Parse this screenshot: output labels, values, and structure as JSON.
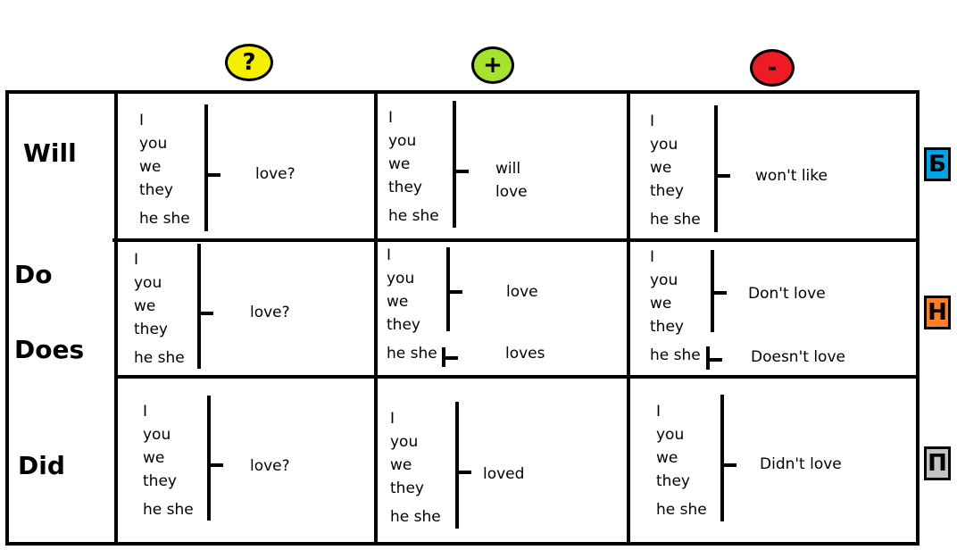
{
  "header": {
    "question": {
      "symbol": "?",
      "color": "#f5f000"
    },
    "positive": {
      "symbol": "+",
      "color": "#a6e22e"
    },
    "negative": {
      "symbol": "-",
      "color": "#ee1c24"
    }
  },
  "rows": {
    "will": "Will",
    "do": "Do",
    "does": "Does",
    "did": "Did"
  },
  "pronouns": {
    "i": "I",
    "you": "you",
    "we": "we",
    "they": "they",
    "heshe": "he she"
  },
  "cells": {
    "will_q": "love?",
    "will_pos_1": "will",
    "will_pos_2": "love",
    "will_neg": "won't like",
    "do_q": "love?",
    "do_pos": "love",
    "does_pos": "loves",
    "do_neg": "Don't love",
    "does_neg": "Doesn't love",
    "did_q": "love?",
    "did_pos": "loved",
    "did_neg": "Didn't love"
  },
  "side_letters": {
    "b": {
      "text": "Б",
      "color": "#00a2e8"
    },
    "n": {
      "text": "Н",
      "color": "#ff7f27"
    },
    "p": {
      "text": "П",
      "color": "#c3c3c3"
    }
  }
}
